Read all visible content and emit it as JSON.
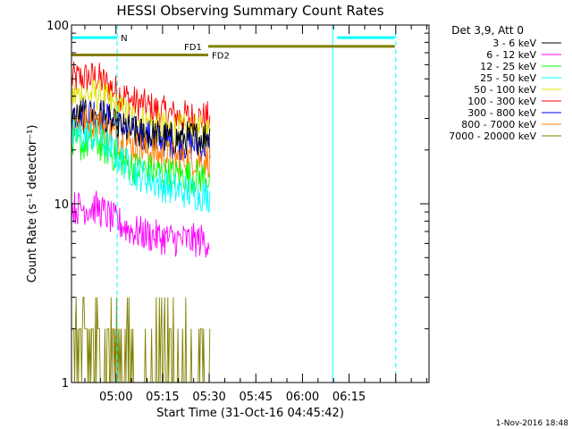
{
  "chart_data": {
    "type": "line",
    "title": "HESSI Observing Summary Count Rates",
    "xlabel": "Start Time (31-Oct-16 04:45:42)",
    "ylabel": "Count Rate (s⁻¹ detector⁻¹)",
    "xaxis": {
      "unit": "minutes after 04:45:42",
      "range": [
        0,
        115
      ],
      "tick_labels": [
        "05:00",
        "05:15",
        "05:30",
        "05:45",
        "06:00",
        "06:15"
      ],
      "tick_values": [
        14.3,
        29.3,
        44.3,
        59.3,
        74.3,
        89.3
      ]
    },
    "yaxis": {
      "scale": "log",
      "range": [
        1,
        100
      ],
      "tick_labels": [
        "1",
        "10",
        "100"
      ],
      "tick_values": [
        1,
        10,
        100
      ]
    },
    "legend": {
      "placement": "outside-right",
      "header": "Det 3,9, Att 0",
      "entries": [
        {
          "label": "3 - 6 keV",
          "color": "#000000"
        },
        {
          "label": "6 - 12 keV",
          "color": "#ff00ff"
        },
        {
          "label": "12 - 25 keV",
          "color": "#00ff00"
        },
        {
          "label": "25 - 50 keV",
          "color": "#00ffff"
        },
        {
          "label": "50 - 100 keV",
          "color": "#e0e000"
        },
        {
          "label": "100 - 300 keV",
          "color": "#ff0000"
        },
        {
          "label": "300 - 800 keV",
          "color": "#0000ff"
        },
        {
          "label": "800 - 7000 keV",
          "color": "#ff8000"
        },
        {
          "label": "7000 - 20000 keV",
          "color": "#808000"
        }
      ]
    },
    "series": [
      {
        "name": "100 - 300 keV",
        "color": "#ff0000",
        "t": [
          0,
          8,
          14,
          20,
          28,
          33,
          45
        ],
        "y": [
          50,
          51,
          43,
          37,
          33,
          31,
          30
        ]
      },
      {
        "name": "50 - 100 keV",
        "color": "#e0e000",
        "t": [
          0,
          8,
          14,
          20,
          28,
          33,
          45
        ],
        "y": [
          40,
          41,
          35,
          30,
          27,
          26,
          25
        ]
      },
      {
        "name": "300 - 800 keV",
        "color": "#0000ff",
        "t": [
          0,
          8,
          14,
          20,
          28,
          33,
          45
        ],
        "y": [
          32,
          33,
          28,
          25,
          23,
          22,
          21
        ]
      },
      {
        "name": "3 - 6 keV",
        "color": "#000000",
        "t": [
          0,
          8,
          14,
          20,
          28,
          33,
          45
        ],
        "y": [
          30,
          31,
          27,
          25,
          24,
          23,
          24
        ]
      },
      {
        "name": "800 - 7000 keV",
        "color": "#ff8000",
        "t": [
          0,
          8,
          14,
          20,
          28,
          33,
          45
        ],
        "y": [
          28,
          29,
          24,
          21,
          19,
          18,
          17.5
        ]
      },
      {
        "name": "12 - 25 keV",
        "color": "#00ff00",
        "t": [
          0,
          8,
          14,
          20,
          28,
          33,
          45
        ],
        "y": [
          21,
          22,
          18.5,
          16,
          15,
          14.5,
          14
        ]
      },
      {
        "name": "25 - 50 keV",
        "color": "#00ffff",
        "t": [
          0,
          8,
          14,
          20,
          28,
          33,
          45
        ],
        "y": [
          24,
          24,
          19,
          15,
          13,
          12,
          11
        ]
      },
      {
        "name": "6 - 12 keV",
        "color": "#ff00ff",
        "t": [
          0,
          8,
          14,
          20,
          28,
          33,
          45
        ],
        "y": [
          9.5,
          9.5,
          8,
          7,
          6.5,
          6.3,
          6.2
        ]
      },
      {
        "name": "7000 - 20000 keV",
        "color": "#808000",
        "t": [
          0,
          8,
          14,
          20,
          28,
          33,
          45
        ],
        "y": [
          1.6,
          1.6,
          1.4,
          1.2,
          1.15,
          1.1,
          1.1
        ]
      }
    ],
    "flag_bars": [
      {
        "label": "N",
        "color": "#00ffff",
        "y": 85,
        "segments": [
          [
            0,
            14.7
          ],
          [
            85.5,
            104
          ]
        ]
      },
      {
        "label": "FD1",
        "color": "#808000",
        "y": 76,
        "segments": [
          [
            44,
            104
          ]
        ]
      },
      {
        "label": "FD2",
        "color": "#808000",
        "y": 68,
        "segments": [
          [
            0,
            44
          ]
        ]
      }
    ],
    "vertical_lines": [
      {
        "t": 14.7,
        "color": "#00ffff",
        "style": "dashed"
      },
      {
        "t": 84.0,
        "color": "#00ffff",
        "style": "solid"
      },
      {
        "t": 104.3,
        "color": "#00ffff",
        "style": "dashed"
      }
    ],
    "data_end_t": 44.6
  },
  "footer": {
    "timestamp": "1-Nov-2016 18:48"
  }
}
